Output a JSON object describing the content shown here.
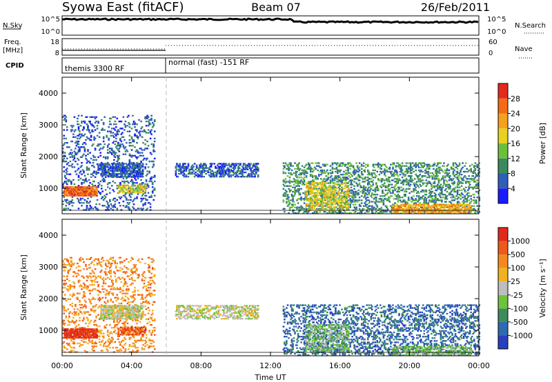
{
  "header": {
    "station": "Syowa East (fitACF)",
    "beam": "Beam 07",
    "date": "26/Feb/2011"
  },
  "top_panels": {
    "nsky": {
      "label": "N.Sky",
      "ticks": [
        "10^5",
        "10^0"
      ]
    },
    "nsearch": {
      "label": "N.Search",
      "ticks": [
        "10^5",
        "10^0"
      ]
    },
    "freq": {
      "label_line1": "Freq.",
      "label_line2": "[MHz]",
      "ticks": [
        "18",
        "8"
      ]
    },
    "nave": {
      "label": "Nave",
      "ticks": [
        "60",
        "0"
      ]
    },
    "cpid": {
      "label": "CPID",
      "segments": [
        "themis 3300 RF",
        "normal (fast) -151 RF"
      ]
    }
  },
  "chart_data": [
    {
      "type": "heatmap",
      "name": "power",
      "ylabel": "Slant Range [km]",
      "x_ticks": [
        "00:00",
        "04:00",
        "08:00",
        "12:00",
        "16:00",
        "20:00",
        "00:00"
      ],
      "y_ticks": [
        1000,
        2000,
        3000,
        4000
      ],
      "ylim": [
        200,
        4500
      ],
      "xlim_hours": [
        0,
        24
      ],
      "colorbar": {
        "label": "Power [dB]",
        "ticks": [
          4,
          8,
          12,
          16,
          20,
          24,
          28
        ],
        "colors": [
          "#1a1aff",
          "#2f5fb8",
          "#3a8a5e",
          "#6bbf3a",
          "#e6d21f",
          "#f4a11e",
          "#f46a15",
          "#e42a1a"
        ]
      },
      "regions": [
        {
          "t0": 0.0,
          "t1": 5.3,
          "r0": 300,
          "r1": 3300,
          "level": 1,
          "density": 0.18
        },
        {
          "t0": 0.1,
          "t1": 2.0,
          "r0": 750,
          "r1": 1050,
          "level": 6,
          "density": 0.85
        },
        {
          "t0": 2.2,
          "t1": 4.6,
          "r0": 1350,
          "r1": 1800,
          "level": 1,
          "density": 0.7
        },
        {
          "t0": 3.2,
          "t1": 4.8,
          "r0": 850,
          "r1": 1100,
          "level": 4,
          "density": 0.6
        },
        {
          "t0": 6.5,
          "t1": 11.3,
          "r0": 1350,
          "r1": 1800,
          "level": 1,
          "density": 0.45
        },
        {
          "t0": 12.7,
          "t1": 24.0,
          "r0": 200,
          "r1": 1800,
          "level": 2,
          "density": 0.3
        },
        {
          "t0": 14.0,
          "t1": 16.5,
          "r0": 300,
          "r1": 1200,
          "level": 4,
          "density": 0.4
        },
        {
          "t0": 19.0,
          "t1": 23.5,
          "r0": 200,
          "r1": 500,
          "level": 5,
          "density": 0.55
        }
      ]
    },
    {
      "type": "heatmap",
      "name": "velocity",
      "ylabel": "Slant Range [km]",
      "xlabel": "Time UT",
      "x_ticks": [
        "00:00",
        "04:00",
        "08:00",
        "12:00",
        "16:00",
        "20:00",
        "00:00"
      ],
      "y_ticks": [
        1000,
        2000,
        3000,
        4000
      ],
      "ylim": [
        200,
        4500
      ],
      "xlim_hours": [
        0,
        24
      ],
      "colorbar": {
        "label": "Velocity [m s⁻¹]",
        "ticks": [
          1000,
          500,
          100,
          25,
          -25,
          -100,
          -500,
          -1000
        ],
        "colors": [
          "#2a3fbf",
          "#2f6bb0",
          "#3d8a5a",
          "#6cc43c",
          "#bdbdbd",
          "#f2b21f",
          "#f48a1e",
          "#ee5a18",
          "#e02a1a"
        ]
      },
      "regions": [
        {
          "t0": 0.0,
          "t1": 5.3,
          "r0": 300,
          "r1": 3300,
          "level": 6,
          "density": 0.18
        },
        {
          "t0": 0.1,
          "t1": 2.0,
          "r0": 750,
          "r1": 1050,
          "level": 8,
          "density": 0.85
        },
        {
          "t0": 2.2,
          "t1": 4.6,
          "r0": 1350,
          "r1": 1800,
          "level": 4,
          "density": 0.65
        },
        {
          "t0": 3.2,
          "t1": 4.8,
          "r0": 850,
          "r1": 1100,
          "level": 7,
          "density": 0.6
        },
        {
          "t0": 6.5,
          "t1": 11.3,
          "r0": 1350,
          "r1": 1800,
          "level": 4,
          "density": 0.45
        },
        {
          "t0": 12.7,
          "t1": 24.0,
          "r0": 200,
          "r1": 1800,
          "level": 1,
          "density": 0.3
        },
        {
          "t0": 14.0,
          "t1": 16.5,
          "r0": 300,
          "r1": 1200,
          "level": 3,
          "density": 0.4
        },
        {
          "t0": 19.0,
          "t1": 23.5,
          "r0": 200,
          "r1": 500,
          "level": 3,
          "density": 0.55
        }
      ]
    }
  ]
}
